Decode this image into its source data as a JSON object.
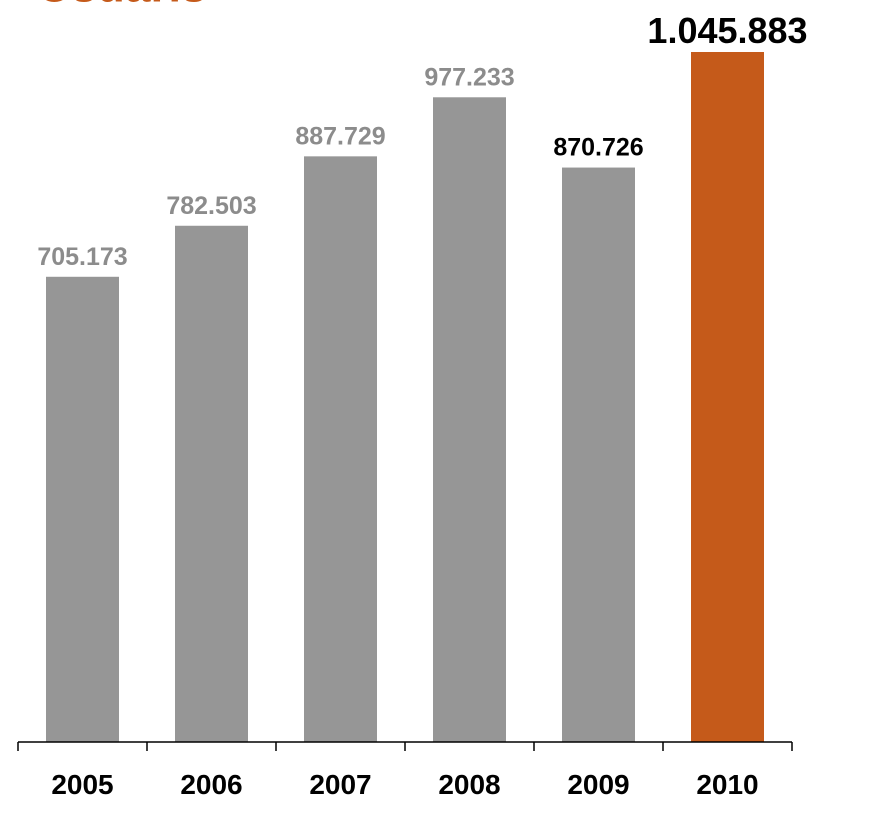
{
  "chart_data": {
    "type": "bar",
    "title": "Usuaris",
    "categories": [
      "2005",
      "2006",
      "2007",
      "2008",
      "2009",
      "2010"
    ],
    "values": [
      705173,
      782503,
      887729,
      977233,
      870726,
      1045883
    ],
    "value_labels": [
      "705.173",
      "782.503",
      "887.729",
      "977.233",
      "870.726",
      "1.045.883"
    ],
    "xlabel": "",
    "ylabel": "",
    "ylim": [
      0,
      1045883
    ],
    "grid": false,
    "legend": "none"
  },
  "colors": {
    "title": "#c55a1a",
    "bar_default": "#969696",
    "bar_highlight": "#c55a1a",
    "label_default": "#8c8c8c",
    "label_emphasis": "#000000",
    "axis": "#000000"
  }
}
